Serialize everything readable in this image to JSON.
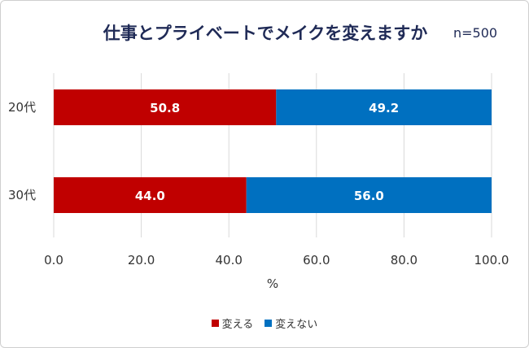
{
  "title": "仕事とプライベートでメイクを変えますか",
  "sample_size": "n=500",
  "colors": {
    "kaeru": "#c00000",
    "kaenai": "#0070c0",
    "grid": "#d9d9d9",
    "text": "#333333"
  },
  "chart_data": {
    "type": "bar",
    "orientation": "horizontal",
    "stacked": true,
    "categories": [
      "20代",
      "30代"
    ],
    "series": [
      {
        "name": "変える",
        "values": [
          50.8,
          44.0
        ],
        "labels": [
          "50.8",
          "44.0"
        ]
      },
      {
        "name": "変えない",
        "values": [
          49.2,
          56.0
        ],
        "labels": [
          "49.2",
          "56.0"
        ]
      }
    ],
    "xlim": [
      0,
      100
    ],
    "xticks": [
      "0.0",
      "20.0",
      "40.0",
      "60.0",
      "80.0",
      "100.0"
    ],
    "xlabel": "%",
    "grid": true,
    "legend": "bottom"
  }
}
